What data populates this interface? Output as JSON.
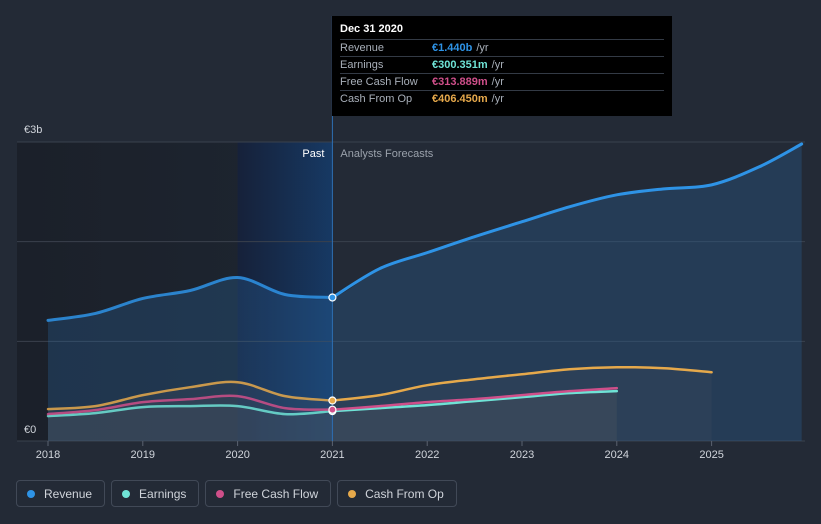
{
  "chart_data": {
    "type": "area",
    "currency_prefix": "€",
    "y_unit": "b",
    "ylim": [
      0,
      3
    ],
    "y_ticks": [
      {
        "value": 0,
        "label": "€0"
      },
      {
        "value": 3,
        "label": "€3b"
      }
    ],
    "gridlines": [
      1,
      2,
      3
    ],
    "x_range": [
      2017.98,
      2025.95
    ],
    "x_ticks": [
      "2018",
      "2019",
      "2020",
      "2021",
      "2022",
      "2023",
      "2024",
      "2025"
    ],
    "divider_x": 2021.0,
    "highlight_start_x": 2020.0,
    "past_label": "Past",
    "forecast_label": "Analysts Forecasts",
    "series": [
      {
        "name": "Revenue",
        "key": "revenue",
        "color": "#2e93e6",
        "points": [
          [
            2018.0,
            1.21
          ],
          [
            2018.5,
            1.28
          ],
          [
            2019.0,
            1.43
          ],
          [
            2019.5,
            1.51
          ],
          [
            2020.0,
            1.64
          ],
          [
            2020.5,
            1.47
          ],
          [
            2021.0,
            1.44
          ],
          [
            2021.5,
            1.73
          ],
          [
            2022.0,
            1.89
          ],
          [
            2022.5,
            2.05
          ],
          [
            2023.0,
            2.2
          ],
          [
            2023.5,
            2.35
          ],
          [
            2024.0,
            2.47
          ],
          [
            2024.5,
            2.53
          ],
          [
            2025.0,
            2.57
          ],
          [
            2025.5,
            2.75
          ],
          [
            2025.95,
            2.98
          ]
        ]
      },
      {
        "name": "Earnings",
        "key": "earnings",
        "color": "#6fe3d6",
        "points": [
          [
            2018.0,
            0.25
          ],
          [
            2018.5,
            0.28
          ],
          [
            2019.0,
            0.34
          ],
          [
            2019.5,
            0.35
          ],
          [
            2020.0,
            0.35
          ],
          [
            2020.5,
            0.27
          ],
          [
            2021.0,
            0.3
          ],
          [
            2021.5,
            0.33
          ],
          [
            2022.0,
            0.36
          ],
          [
            2022.5,
            0.4
          ],
          [
            2023.0,
            0.44
          ],
          [
            2023.5,
            0.48
          ],
          [
            2024.0,
            0.5
          ]
        ]
      },
      {
        "name": "Free Cash Flow",
        "key": "fcf",
        "color": "#cf4f8a",
        "points": [
          [
            2018.0,
            0.27
          ],
          [
            2018.5,
            0.31
          ],
          [
            2019.0,
            0.39
          ],
          [
            2019.5,
            0.42
          ],
          [
            2020.0,
            0.45
          ],
          [
            2020.5,
            0.33
          ],
          [
            2021.0,
            0.314
          ],
          [
            2021.5,
            0.35
          ],
          [
            2022.0,
            0.39
          ],
          [
            2022.5,
            0.42
          ],
          [
            2023.0,
            0.46
          ],
          [
            2023.5,
            0.5
          ],
          [
            2024.0,
            0.53
          ]
        ]
      },
      {
        "name": "Cash From Op",
        "key": "cfo",
        "color": "#e6a94b",
        "points": [
          [
            2018.0,
            0.32
          ],
          [
            2018.5,
            0.35
          ],
          [
            2019.0,
            0.46
          ],
          [
            2019.5,
            0.54
          ],
          [
            2020.0,
            0.59
          ],
          [
            2020.5,
            0.45
          ],
          [
            2021.0,
            0.406
          ],
          [
            2021.5,
            0.46
          ],
          [
            2022.0,
            0.56
          ],
          [
            2022.5,
            0.62
          ],
          [
            2023.0,
            0.67
          ],
          [
            2023.5,
            0.72
          ],
          [
            2024.0,
            0.74
          ],
          [
            2024.5,
            0.73
          ],
          [
            2025.0,
            0.69
          ]
        ]
      }
    ]
  },
  "tooltip": {
    "date": "Dec 31 2020",
    "rows": [
      {
        "label": "Revenue",
        "value": "€1.440b",
        "unit": "/yr",
        "color": "#2e93e6"
      },
      {
        "label": "Earnings",
        "value": "€300.351m",
        "unit": "/yr",
        "color": "#6fe3d6"
      },
      {
        "label": "Free Cash Flow",
        "value": "€313.889m",
        "unit": "/yr",
        "color": "#cf4f8a"
      },
      {
        "label": "Cash From Op",
        "value": "€406.450m",
        "unit": "/yr",
        "color": "#e6a94b"
      }
    ]
  },
  "legend": [
    {
      "label": "Revenue",
      "color": "#2e93e6"
    },
    {
      "label": "Earnings",
      "color": "#6fe3d6"
    },
    {
      "label": "Free Cash Flow",
      "color": "#cf4f8a"
    },
    {
      "label": "Cash From Op",
      "color": "#e6a94b"
    }
  ]
}
